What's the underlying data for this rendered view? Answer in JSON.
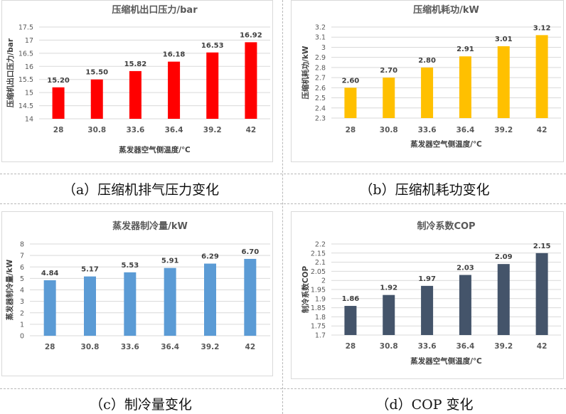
{
  "captions": {
    "a": "（a）压缩机排气压力变化",
    "b": "（b）压缩机耗功变化",
    "c": "（c）制冷量变化",
    "d": "（d）COP 变化"
  },
  "chart_data": [
    {
      "id": "a",
      "type": "bar",
      "title": "压缩机出口压力/bar",
      "xlabel": "蒸发器空气侧温度/℃",
      "ylabel": "压缩机出口压力/bar",
      "categories": [
        "28",
        "30.8",
        "33.6",
        "36.4",
        "39.2",
        "42"
      ],
      "values": [
        15.2,
        15.5,
        15.82,
        16.18,
        16.53,
        16.92
      ],
      "labels": [
        "15.20",
        "15.50",
        "15.82",
        "16.18",
        "16.53",
        "16.92"
      ],
      "ylim": [
        14,
        17.5
      ],
      "yticks": [
        "14",
        "14.5",
        "15",
        "15.5",
        "16",
        "16.5",
        "17",
        "17.5"
      ],
      "color": "#ff0000",
      "grid": true
    },
    {
      "id": "b",
      "type": "bar",
      "title": "压缩机耗功/kW",
      "xlabel": "蒸发器空气侧温度/℃",
      "ylabel": "压缩机耗功/kW",
      "categories": [
        "28",
        "30.8",
        "33.6",
        "36.4",
        "39.2",
        "42"
      ],
      "values": [
        2.6,
        2.7,
        2.8,
        2.91,
        3.01,
        3.12
      ],
      "labels": [
        "2.60",
        "2.70",
        "2.80",
        "2.91",
        "3.01",
        "3.12"
      ],
      "ylim": [
        2.3,
        3.2
      ],
      "yticks": [
        "2.3",
        "2.4",
        "2.5",
        "2.6",
        "2.7",
        "2.8",
        "2.9",
        "3",
        "3.1",
        "3.2"
      ],
      "color": "#ffc000",
      "grid": true
    },
    {
      "id": "c",
      "type": "bar",
      "title": "蒸发器制冷量/kW",
      "xlabel": "",
      "ylabel": "蒸发器制冷量/kW",
      "categories": [
        "28",
        "30.8",
        "33.6",
        "36.4",
        "39.2",
        "42"
      ],
      "values": [
        4.84,
        5.17,
        5.53,
        5.91,
        6.29,
        6.7
      ],
      "labels": [
        "4.84",
        "5.17",
        "5.53",
        "5.91",
        "6.29",
        "6.70"
      ],
      "ylim": [
        0,
        8
      ],
      "yticks": [
        "0",
        "1",
        "2",
        "3",
        "4",
        "5",
        "6",
        "7",
        "8"
      ],
      "color": "#5b9bd5",
      "grid": true
    },
    {
      "id": "d",
      "type": "bar",
      "title": "制冷系数COP",
      "xlabel": "蒸发器空气侧温度/℃",
      "ylabel": "制冷系数COP",
      "categories": [
        "28",
        "30.8",
        "33.6",
        "36.4",
        "39.2",
        "42"
      ],
      "values": [
        1.86,
        1.92,
        1.97,
        2.03,
        2.09,
        2.15
      ],
      "labels": [
        "1.86",
        "1.92",
        "1.97",
        "2.03",
        "2.09",
        "2.15"
      ],
      "ylim": [
        1.7,
        2.2
      ],
      "yticks": [
        "1.7",
        "1.75",
        "1.8",
        "1.85",
        "1.9",
        "1.95",
        "2",
        "2.05",
        "2.1",
        "2.15",
        "2.2"
      ],
      "color": "#44546a",
      "grid": true
    }
  ]
}
